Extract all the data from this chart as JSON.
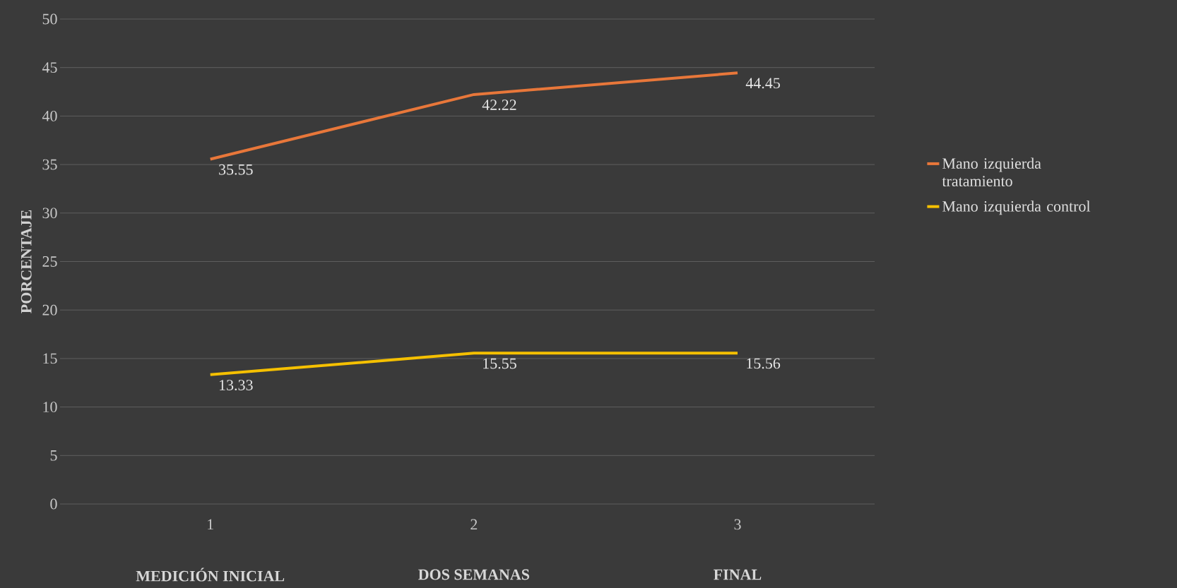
{
  "chart_data": {
    "type": "line",
    "ylabel": "PORCENTAJE",
    "categories": [
      "1",
      "2",
      "3"
    ],
    "annotations": [
      "MEDICIÓN INICIAL",
      "DOS SEMANAS",
      "FINAL"
    ],
    "series": [
      {
        "name": "Mano izquierda tratamiento",
        "color": "#e8773a",
        "values": [
          35.55,
          42.22,
          44.45
        ]
      },
      {
        "name": "Mano izquierda control",
        "color": "#f5c000",
        "values": [
          13.33,
          15.55,
          15.56
        ]
      }
    ],
    "ylim": [
      0,
      50
    ],
    "yticks": [
      0,
      5,
      10,
      15,
      20,
      25,
      30,
      35,
      40,
      45,
      50
    ],
    "grid": "y",
    "legend": "right",
    "data_labels": true,
    "marker": "none",
    "line_style": "solid"
  }
}
